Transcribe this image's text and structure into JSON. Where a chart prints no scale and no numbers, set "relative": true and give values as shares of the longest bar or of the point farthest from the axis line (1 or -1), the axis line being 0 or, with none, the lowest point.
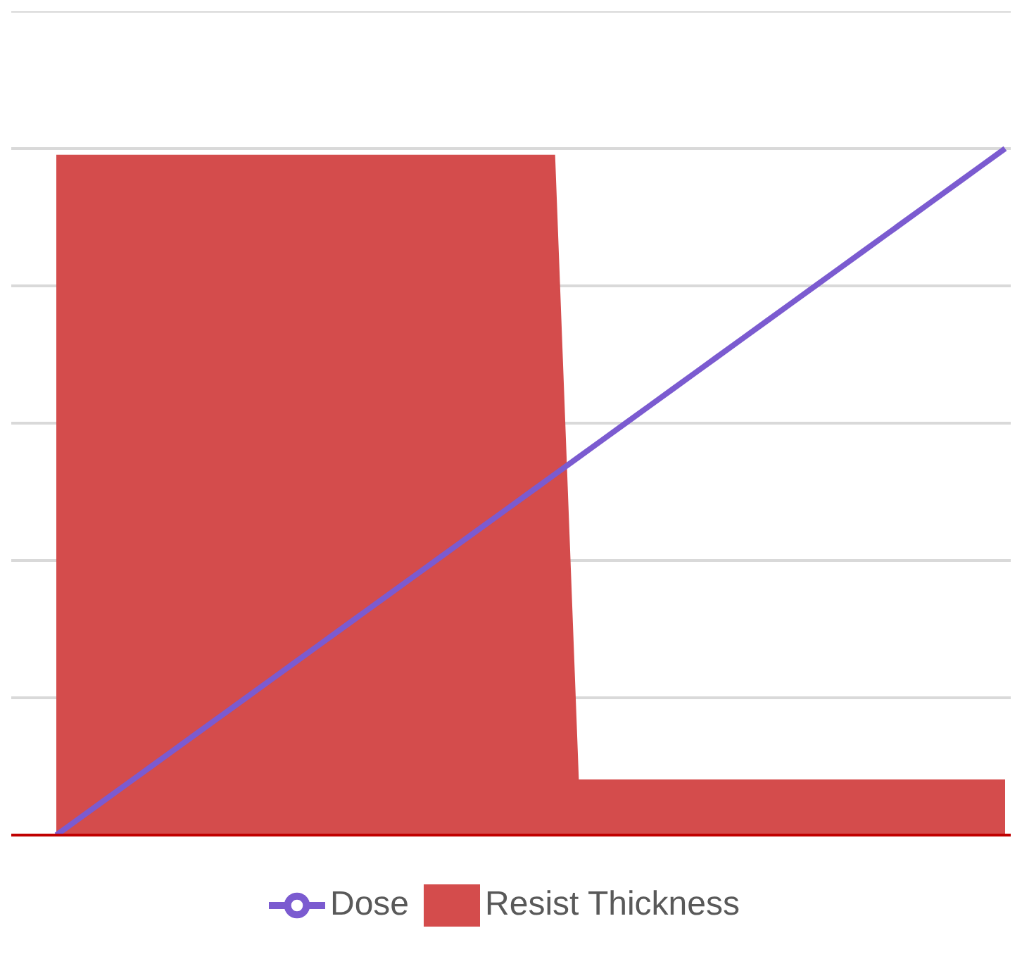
{
  "chart_data": {
    "type": "area",
    "relative": true,
    "categories": [
      null,
      null,
      null,
      null,
      null,
      null,
      null,
      null,
      null,
      null,
      null,
      null,
      null,
      null,
      null,
      null,
      null,
      null,
      null,
      null,
      null,
      null,
      null,
      null,
      null,
      null,
      null,
      null,
      null,
      null,
      null,
      null,
      null,
      null,
      null,
      null,
      null,
      null,
      null,
      null,
      null
    ],
    "series": [
      {
        "name": "Resist Thickness",
        "color": "#d44c4c",
        "values": [
          0.99,
          0.99,
          0.99,
          0.99,
          0.99,
          0.99,
          0.99,
          0.99,
          0.99,
          0.99,
          0.99,
          0.99,
          0.99,
          0.99,
          0.99,
          0.99,
          0.99,
          0.99,
          0.99,
          0.99,
          0.99,
          0.99,
          0.08,
          0.08,
          0.08,
          0.08,
          0.08,
          0.08,
          0.08,
          0.08,
          0.08,
          0.08,
          0.08,
          0.08,
          0.08,
          0.08,
          0.08,
          0.08,
          0.08,
          0.08,
          0.08
        ]
      },
      {
        "name": "Dose",
        "type": "line",
        "color": "#7b5bd0",
        "values": [
          0,
          0.025,
          0.05,
          0.075,
          0.1,
          0.125,
          0.15,
          0.175,
          0.2,
          0.225,
          0.25,
          0.275,
          0.3,
          0.325,
          0.35,
          0.375,
          0.4,
          0.425,
          0.45,
          0.475,
          0.5,
          0.525,
          0.55,
          0.575,
          0.6,
          0.625,
          0.65,
          0.675,
          0.7,
          0.725,
          0.75,
          0.775,
          0.8,
          0.825,
          0.85,
          0.875,
          0.9,
          0.925,
          0.95,
          0.975,
          1
        ]
      }
    ],
    "grid": "y",
    "legend": "bottom",
    "marker": "none",
    "line_style": "solid"
  }
}
